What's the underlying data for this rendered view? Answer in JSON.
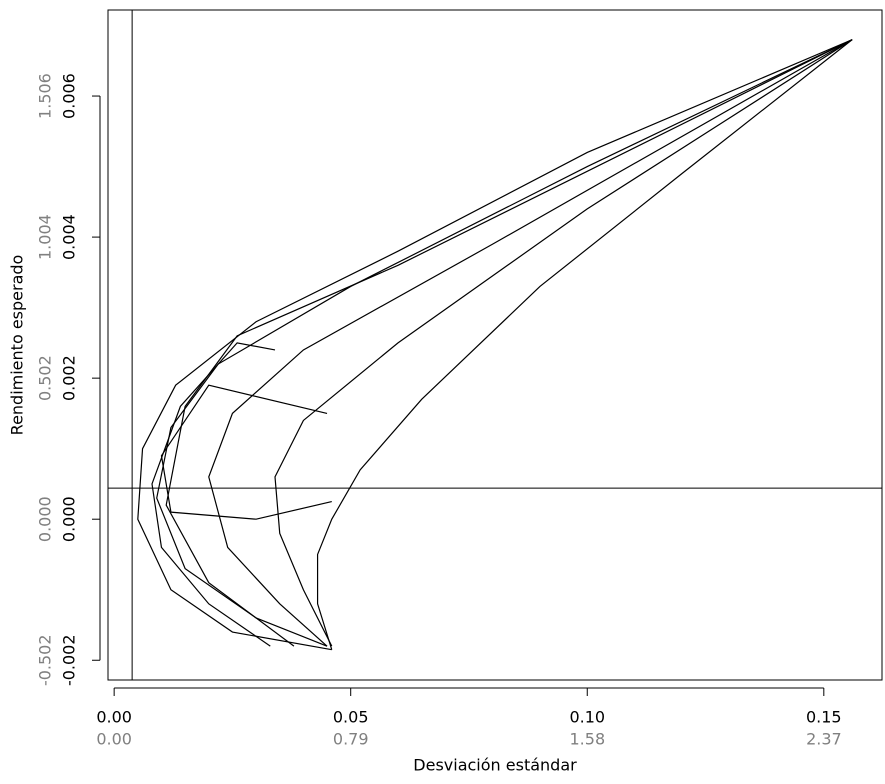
{
  "chart_data": {
    "type": "line",
    "x_label": "Desviación estándar",
    "y_label": "Rendimiento esperado",
    "color": "#000000",
    "secondary_color": "#808080",
    "xlim": [
      -0.0013,
      0.1623
    ],
    "ylim": [
      -0.00228,
      0.00722
    ],
    "x2lim": [
      -0.0205,
      2.564
    ],
    "y2lim": [
      -0.5723,
      1.8122
    ],
    "xticks": [
      {
        "value": 0,
        "label": "0.00"
      },
      0.05,
      {
        "value": 0.1,
        "label": "0.10"
      },
      0.15
    ],
    "x2ticks": [
      {
        "value": 0,
        "label": "0.00"
      },
      0.79,
      1.58,
      2.37
    ],
    "yticks": [
      -0.002,
      {
        "value": 0,
        "label": "0.000"
      },
      0.002,
      0.004,
      0.006
    ],
    "y2ticks": [
      -0.502,
      {
        "value": 0,
        "label": "0.000"
      },
      0.502,
      1.004,
      1.506
    ],
    "hline": 0.00044,
    "vline": 0.0038,
    "series": [
      {
        "x": [
          0.046,
          0.025,
          0.012,
          0.005,
          0.006,
          0.013,
          0.03,
          0.06,
          0.1,
          0.156
        ],
        "values": [
          -0.00185,
          -0.0016,
          -0.001,
          0.0,
          0.001,
          0.0019,
          0.0028,
          0.0038,
          0.0052,
          0.0068
        ]
      },
      {
        "x": [
          0.046,
          0.043,
          0.043,
          0.046,
          0.052,
          0.065,
          0.09,
          0.12,
          0.156
        ],
        "values": [
          -0.00185,
          -0.0012,
          -0.0005,
          0.0,
          0.0007,
          0.0017,
          0.0033,
          0.0049,
          0.0068
        ]
      },
      {
        "x": [
          0.045,
          0.03,
          0.015,
          0.009,
          0.012,
          0.022,
          0.05,
          0.1,
          0.156
        ],
        "values": [
          -0.0018,
          -0.0014,
          -0.0007,
          0.0003,
          0.0013,
          0.0022,
          0.0033,
          0.005,
          0.0068
        ]
      },
      {
        "x": [
          0.045,
          0.035,
          0.024,
          0.02,
          0.025,
          0.04,
          0.08,
          0.156
        ],
        "values": [
          -0.0018,
          -0.0012,
          -0.0004,
          0.0006,
          0.0015,
          0.0024,
          0.0039,
          0.0068
        ]
      },
      {
        "x": [
          0.046,
          0.04,
          0.035,
          0.034,
          0.04,
          0.06,
          0.1,
          0.156
        ],
        "values": [
          -0.0018,
          -0.001,
          -0.0002,
          0.0006,
          0.0014,
          0.0025,
          0.0044,
          0.0068
        ]
      },
      {
        "x": [
          0.033,
          0.02,
          0.01,
          0.008,
          0.014,
          0.026,
          0.034
        ],
        "values": [
          -0.0018,
          -0.0012,
          -0.0004,
          0.0005,
          0.0016,
          0.0025,
          0.0024
        ]
      },
      {
        "x": [
          0.046,
          0.03,
          0.012,
          0.01,
          0.02,
          0.045
        ],
        "values": [
          0.00025,
          0.0,
          0.0001,
          0.0009,
          0.0019,
          0.0015
        ]
      },
      {
        "x": [
          0.038,
          0.02,
          0.011,
          0.015,
          0.026,
          0.06,
          0.156
        ],
        "values": [
          -0.0018,
          -0.0009,
          0.0002,
          0.0016,
          0.0026,
          0.0036,
          0.0068
        ]
      }
    ]
  }
}
